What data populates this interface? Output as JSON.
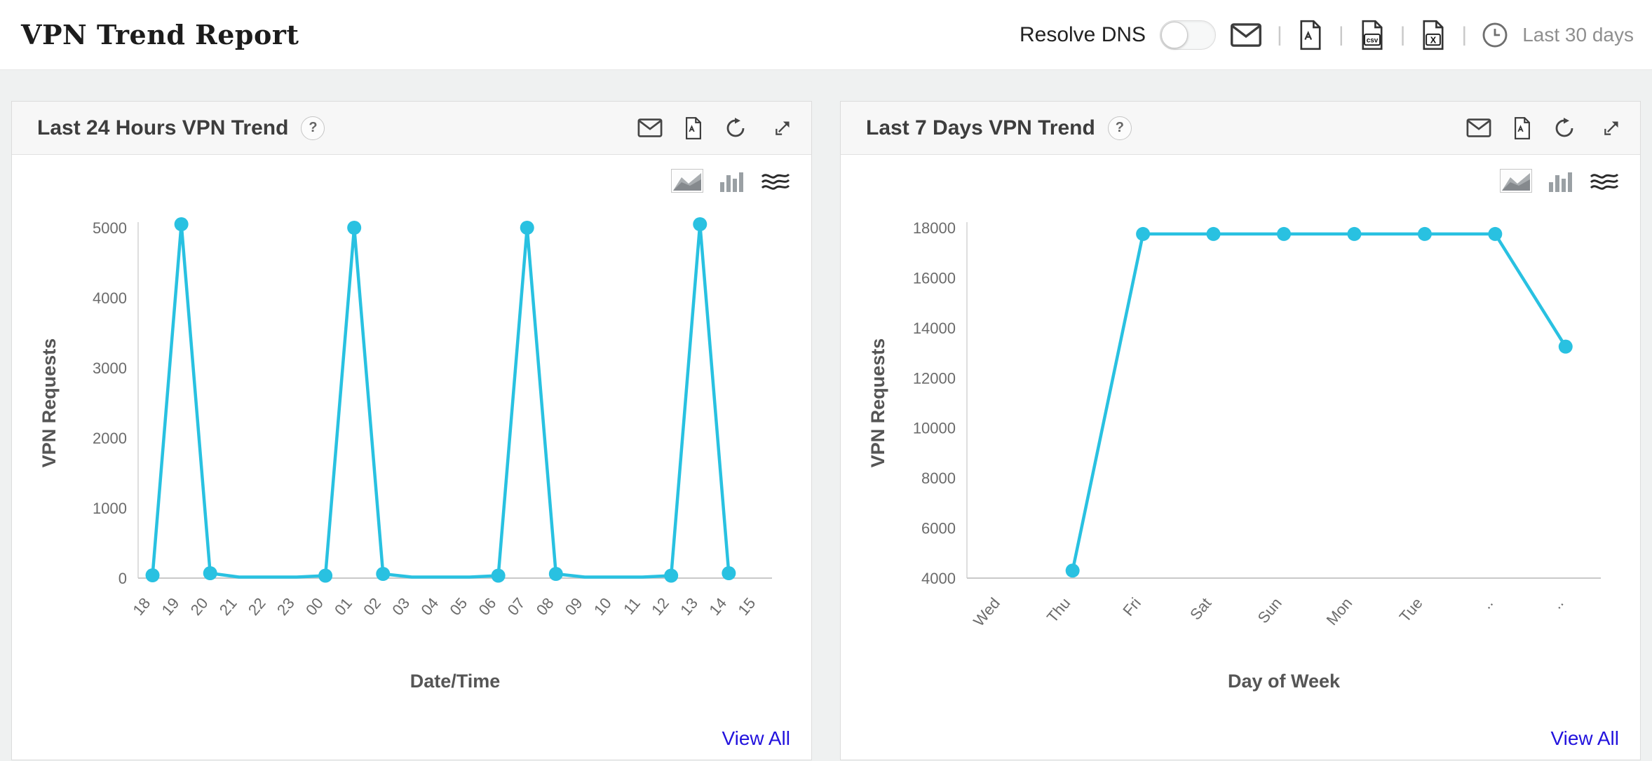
{
  "header": {
    "title": "VPN Trend Report",
    "resolve_dns_label": "Resolve DNS",
    "separator": "|",
    "time_range_label": "Last 30 days",
    "csv_icon_label": "csv",
    "excel_icon_label": "X"
  },
  "panels": [
    {
      "title": "Last 24 Hours VPN Trend",
      "help_label": "?",
      "view_all_label": "View All"
    },
    {
      "title": "Last 7 Days VPN Trend",
      "help_label": "?",
      "view_all_label": "View All"
    }
  ],
  "colors": {
    "line": "#29c1e1",
    "link": "#2212dd"
  },
  "chart_data": [
    {
      "type": "line",
      "title": "Last 24 Hours VPN Trend",
      "xlabel": "Date/Time",
      "ylabel": "VPN Requests",
      "ylim": [
        0,
        5000
      ],
      "ytick_step": 1000,
      "grid": false,
      "legend": "none",
      "categories": [
        "18",
        "19",
        "20",
        "21",
        "22",
        "23",
        "00",
        "01",
        "02",
        "03",
        "04",
        "05",
        "06",
        "07",
        "08",
        "09",
        "10",
        "11",
        "12",
        "13",
        "14",
        "15"
      ],
      "values": [
        40,
        5050,
        70,
        15,
        15,
        15,
        35,
        5000,
        60,
        15,
        15,
        15,
        35,
        5000,
        60,
        15,
        15,
        15,
        35,
        5050,
        70,
        null
      ],
      "marker_indices": [
        0,
        1,
        2,
        6,
        7,
        8,
        12,
        13,
        14,
        18,
        19,
        20
      ],
      "line_color": "#29c1e1"
    },
    {
      "type": "line",
      "title": "Last 7 Days VPN Trend",
      "xlabel": "Day of Week",
      "ylabel": "VPN Requests",
      "ylim": [
        4000,
        18000
      ],
      "ytick_step": 2000,
      "grid": false,
      "legend": "none",
      "categories": [
        "Wed",
        "Thu",
        "Fri",
        "Sat",
        "Sun",
        "Mon",
        "Tue",
        "..",
        ".."
      ],
      "values": [
        null,
        4300,
        17750,
        17750,
        17750,
        17750,
        17750,
        17750,
        13250
      ],
      "marker_indices": [
        1,
        2,
        3,
        4,
        5,
        6,
        7,
        8
      ],
      "line_color": "#29c1e1"
    }
  ]
}
